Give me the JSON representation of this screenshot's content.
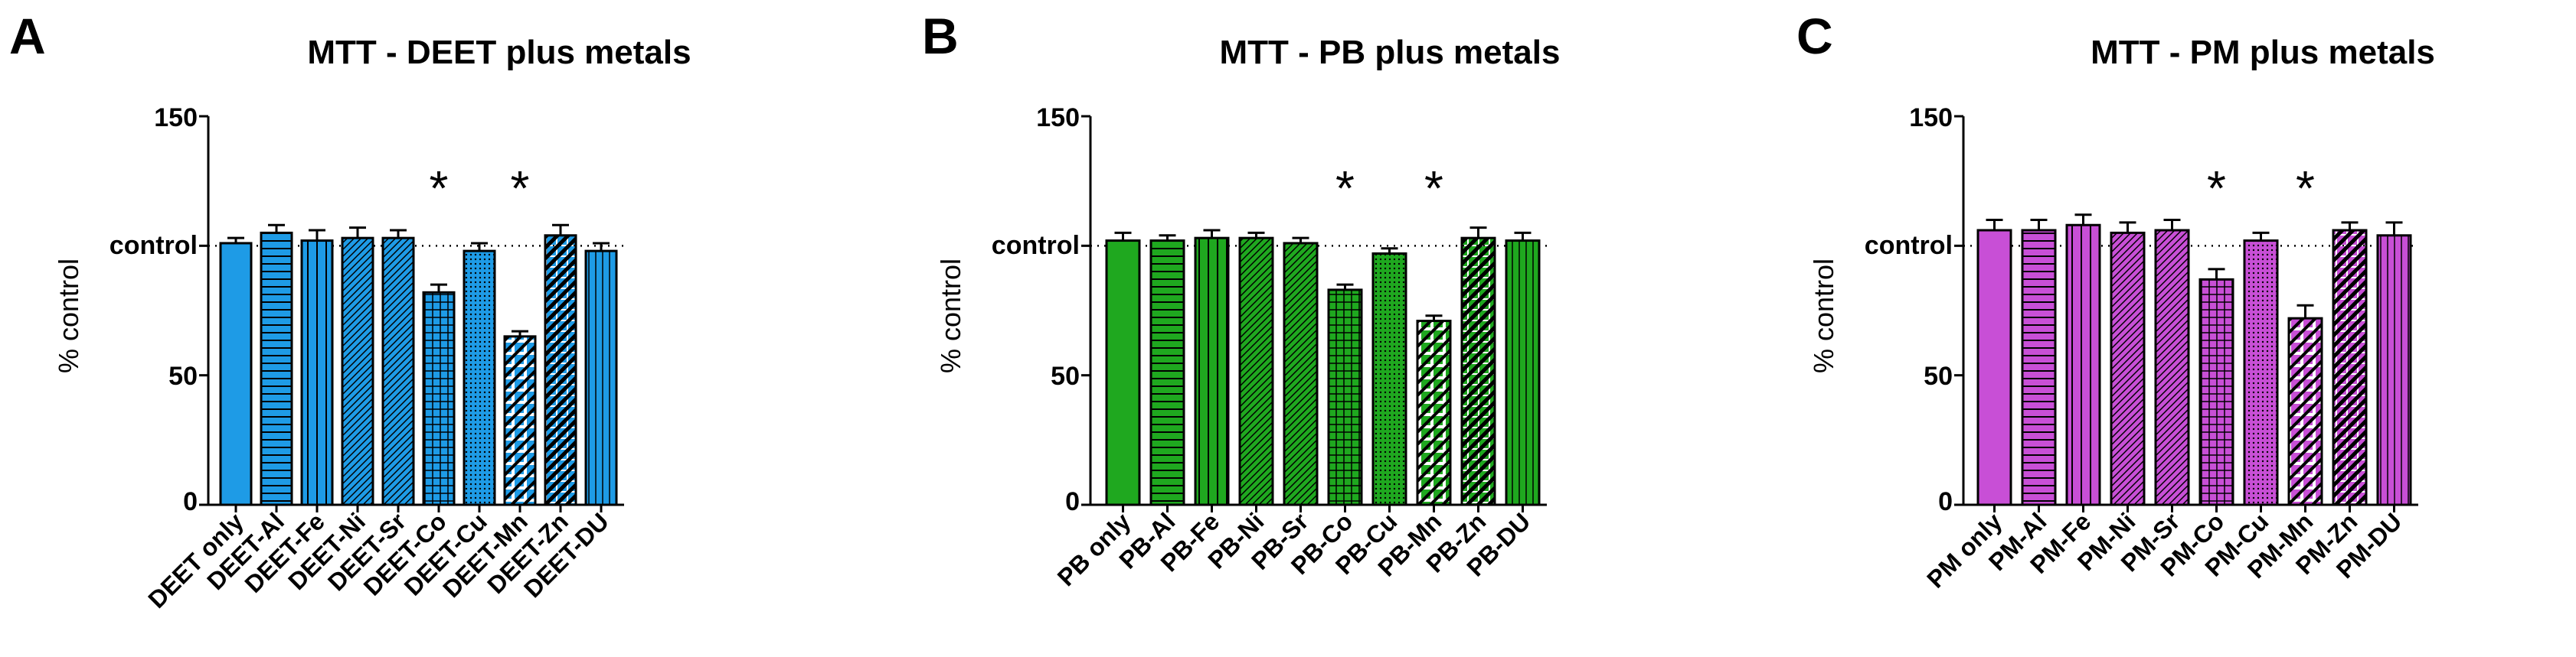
{
  "figure": {
    "panels": [
      {
        "letter": "A",
        "title": "MTT - DEET plus metals",
        "ylabel": "% control",
        "yticks": [
          "0",
          "50",
          "control",
          "150"
        ],
        "color": "#1e9be6",
        "categories": [
          "DEET only",
          "DEET-Al",
          "DEET-Fe",
          "DEET-Ni",
          "DEET-Sr",
          "DEET-Co",
          "DEET-Cu",
          "DEET-Mn",
          "DEET-Zn",
          "DEET-DU"
        ],
        "significance_mark": "*"
      },
      {
        "letter": "B",
        "title": "MTT - PB plus metals",
        "ylabel": "% control",
        "yticks": [
          "0",
          "50",
          "control",
          "150"
        ],
        "color": "#1fa81f",
        "categories": [
          "PB only",
          "PB-Al",
          "PB-Fe",
          "PB-Ni",
          "PB-Sr",
          "PB-Co",
          "PB-Cu",
          "PB-Mn",
          "PB-Zn",
          "PB-DU"
        ],
        "significance_mark": "*"
      },
      {
        "letter": "C",
        "title": "MTT - PM plus metals",
        "ylabel": "% control",
        "yticks": [
          "0",
          "50",
          "control",
          "150"
        ],
        "color": "#c84fd6",
        "categories": [
          "PM only",
          "PM-Al",
          "PM-Fe",
          "PM-Ni",
          "PM-Sr",
          "PM-Co",
          "PM-Cu",
          "PM-Mn",
          "PM-Zn",
          "PM-DU"
        ],
        "significance_mark": "*"
      }
    ]
  },
  "chart_data": [
    {
      "type": "bar",
      "title": "MTT - DEET plus metals",
      "ylabel": "% control",
      "xlabel": "",
      "ylim": [
        0,
        150
      ],
      "control_line": 100,
      "categories": [
        "DEET only",
        "DEET-Al",
        "DEET-Fe",
        "DEET-Ni",
        "DEET-Sr",
        "DEET-Co",
        "DEET-Cu",
        "DEET-Mn",
        "DEET-Zn",
        "DEET-DU"
      ],
      "values": [
        101,
        105,
        102,
        103,
        103,
        82,
        98,
        65,
        104,
        98
      ],
      "errors": [
        2,
        3,
        4,
        4,
        3,
        3,
        3,
        2,
        4,
        3
      ],
      "significant": [
        false,
        false,
        false,
        false,
        false,
        true,
        false,
        true,
        false,
        false
      ],
      "patterns": [
        "solid",
        "horizontal",
        "vertical",
        "diagonal-fine",
        "diagonal-fine",
        "grid",
        "dots",
        "diagonal-wide",
        "diagonal-thick",
        "vertical-fine"
      ],
      "color": "#1e9be6",
      "grid": false,
      "legend": "none"
    },
    {
      "type": "bar",
      "title": "MTT - PB plus metals",
      "ylabel": "% control",
      "xlabel": "",
      "ylim": [
        0,
        150
      ],
      "control_line": 100,
      "categories": [
        "PB only",
        "PB-Al",
        "PB-Fe",
        "PB-Ni",
        "PB-Sr",
        "PB-Co",
        "PB-Cu",
        "PB-Mn",
        "PB-Zn",
        "PB-DU"
      ],
      "values": [
        102,
        102,
        103,
        103,
        101,
        83,
        97,
        71,
        103,
        102
      ],
      "errors": [
        3,
        2,
        3,
        2,
        2,
        2,
        2,
        2,
        4,
        3
      ],
      "significant": [
        false,
        false,
        false,
        false,
        false,
        true,
        false,
        true,
        false,
        false
      ],
      "patterns": [
        "solid",
        "horizontal",
        "vertical",
        "diagonal-fine",
        "diagonal-fine",
        "grid",
        "dots",
        "diagonal-wide",
        "diagonal-thick",
        "vertical-fine"
      ],
      "color": "#1fa81f",
      "grid": false,
      "legend": "none"
    },
    {
      "type": "bar",
      "title": "MTT - PM plus metals",
      "ylabel": "% control",
      "xlabel": "",
      "ylim": [
        0,
        150
      ],
      "control_line": 100,
      "categories": [
        "PM only",
        "PM-Al",
        "PM-Fe",
        "PM-Ni",
        "PM-Sr",
        "PM-Co",
        "PM-Cu",
        "PM-Mn",
        "PM-Zn",
        "PM-DU"
      ],
      "values": [
        106,
        106,
        108,
        105,
        106,
        87,
        102,
        72,
        106,
        104
      ],
      "errors": [
        4,
        4,
        4,
        4,
        4,
        4,
        3,
        5,
        3,
        5
      ],
      "significant": [
        false,
        false,
        false,
        false,
        false,
        true,
        false,
        true,
        false,
        false
      ],
      "patterns": [
        "solid",
        "horizontal",
        "vertical",
        "diagonal-fine",
        "diagonal-fine",
        "grid",
        "dots",
        "diagonal-wide",
        "diagonal-thick",
        "vertical-fine"
      ],
      "color": "#c84fd6",
      "grid": false,
      "legend": "none"
    }
  ]
}
